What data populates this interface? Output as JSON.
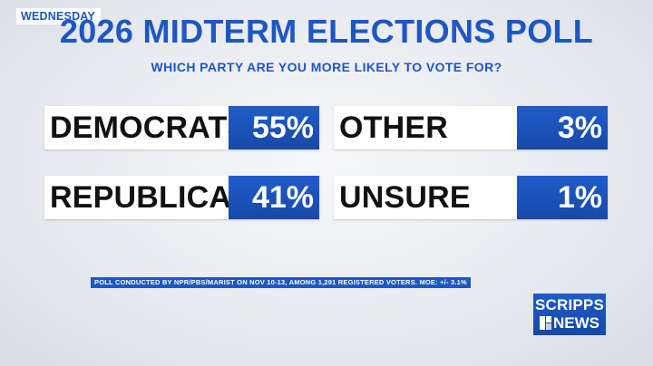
{
  "day_tag": "WEDNESDAY",
  "title": "2026 MIDTERM ELECTIONS POLL",
  "subtitle": "WHICH PARTY ARE YOU MORE LIKELY TO VOTE FOR?",
  "results": [
    {
      "label": "DEMOCRATS",
      "value": "55%"
    },
    {
      "label": "OTHER",
      "value": "3%"
    },
    {
      "label": "REPUBLICANS",
      "value": "41%"
    },
    {
      "label": "UNSURE",
      "value": "1%"
    }
  ],
  "footnote": "POLL CONDUCTED BY NPR/PBS/MARIST ON NOV 10-13, AMONG 1,291 REGISTERED VOTERS. MOE: +/- 3.1%",
  "logo": {
    "line1": "SCRIPPS",
    "line2": "NEWS"
  },
  "colors": {
    "brand_blue": "#1d57c4",
    "text_dark": "#111111",
    "panel": "#ffffff"
  }
}
